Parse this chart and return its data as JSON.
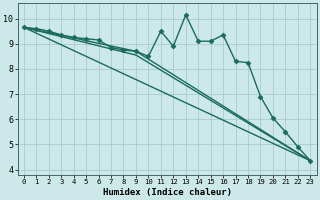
{
  "xlabel": "Humidex (Indice chaleur)",
  "bg_color": "#cce8e8",
  "grid_color": "#aacccc",
  "line_color": "#1a6b5a",
  "xlim": [
    -0.5,
    23.5
  ],
  "ylim": [
    3.8,
    10.6
  ],
  "yticks": [
    4,
    5,
    6,
    7,
    8,
    9,
    10
  ],
  "xticks": [
    0,
    1,
    2,
    3,
    4,
    5,
    6,
    7,
    8,
    9,
    10,
    11,
    12,
    13,
    14,
    15,
    16,
    17,
    18,
    19,
    20,
    21,
    22,
    23
  ],
  "series_main": {
    "x": [
      0,
      1,
      2,
      3,
      4,
      5,
      6,
      7,
      8,
      9,
      10,
      11,
      12,
      13,
      14,
      15,
      16,
      17,
      18,
      19,
      20,
      21,
      22,
      23
    ],
    "y": [
      9.65,
      9.6,
      9.5,
      9.35,
      9.25,
      9.2,
      9.15,
      8.85,
      8.75,
      8.7,
      8.5,
      9.5,
      8.9,
      10.15,
      9.1,
      9.1,
      9.35,
      8.3,
      8.25,
      6.9,
      6.05,
      5.5,
      4.9,
      4.35
    ]
  },
  "series_lines": [
    {
      "x": [
        0,
        23
      ],
      "y": [
        9.65,
        4.35
      ]
    },
    {
      "x": [
        0,
        9,
        23
      ],
      "y": [
        9.65,
        8.7,
        4.35
      ]
    },
    {
      "x": [
        0,
        9,
        23
      ],
      "y": [
        9.65,
        8.55,
        4.35
      ]
    }
  ],
  "marker": "D",
  "marker_size": 2.5,
  "lw": 1.0
}
